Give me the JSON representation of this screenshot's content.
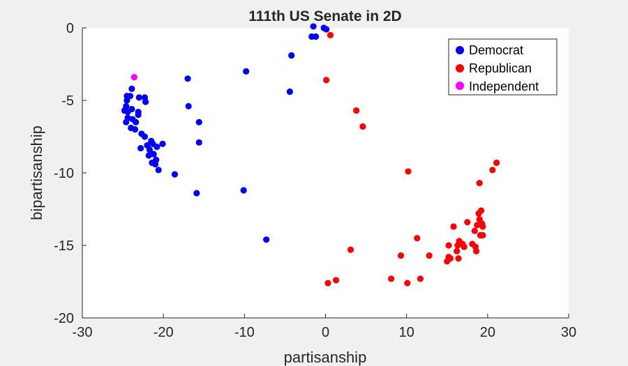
{
  "chart_data": {
    "type": "scatter",
    "title": "111th US Senate in 2D",
    "xlabel": "partisanship",
    "ylabel": "bipartisanship",
    "xlim": [
      -30,
      30
    ],
    "ylim": [
      -20,
      0
    ],
    "xticks": [
      -30,
      -20,
      -10,
      0,
      10,
      20,
      30
    ],
    "yticks": [
      0,
      -5,
      -10,
      -15,
      -20
    ],
    "grid": false,
    "legend_position": "top-right",
    "series": [
      {
        "name": "Democrat",
        "color": "#0000ff",
        "points": [
          [
            -1.5,
            0.1
          ],
          [
            -0.2,
            0.0
          ],
          [
            0.1,
            -0.1
          ],
          [
            -1.2,
            -0.6
          ],
          [
            -1.7,
            -0.6
          ],
          [
            -4.2,
            -1.9
          ],
          [
            -9.8,
            -3.0
          ],
          [
            -4.4,
            -4.4
          ],
          [
            -17.0,
            -3.5
          ],
          [
            -16.9,
            -5.4
          ],
          [
            -15.6,
            -6.5
          ],
          [
            -15.6,
            -7.9
          ],
          [
            -18.6,
            -10.1
          ],
          [
            -15.9,
            -11.4
          ],
          [
            -10.1,
            -11.2
          ],
          [
            -7.3,
            -14.6
          ],
          [
            -23.9,
            -4.2
          ],
          [
            -24.1,
            -4.7
          ],
          [
            -24.5,
            -4.7
          ],
          [
            -24.5,
            -5.0
          ],
          [
            -24.6,
            -5.4
          ],
          [
            -24.8,
            -5.7
          ],
          [
            -24.4,
            -5.8
          ],
          [
            -23.9,
            -5.6
          ],
          [
            -24.4,
            -6.2
          ],
          [
            -23.8,
            -6.3
          ],
          [
            -24.6,
            -6.5
          ],
          [
            -24.0,
            -6.9
          ],
          [
            -23.5,
            -7.0
          ],
          [
            -23.4,
            -6.5
          ],
          [
            -23.1,
            -6.0
          ],
          [
            -23.1,
            -5.8
          ],
          [
            -22.7,
            -7.3
          ],
          [
            -23.0,
            -4.8
          ],
          [
            -22.3,
            -4.8
          ],
          [
            -22.2,
            -5.1
          ],
          [
            -22.3,
            -7.5
          ],
          [
            -21.5,
            -7.8
          ],
          [
            -21.3,
            -8.0
          ],
          [
            -20.8,
            -8.2
          ],
          [
            -20.1,
            -8.0
          ],
          [
            -22.8,
            -8.3
          ],
          [
            -22.0,
            -8.1
          ],
          [
            -21.7,
            -8.4
          ],
          [
            -21.2,
            -8.7
          ],
          [
            -21.8,
            -8.8
          ],
          [
            -20.9,
            -9.1
          ],
          [
            -21.0,
            -9.4
          ],
          [
            -21.4,
            -9.3
          ],
          [
            -20.6,
            -9.8
          ]
        ]
      },
      {
        "name": "Republican",
        "color": "#ff0000",
        "points": [
          [
            0.6,
            -0.5
          ],
          [
            0.1,
            -3.6
          ],
          [
            3.8,
            -5.7
          ],
          [
            4.6,
            -6.8
          ],
          [
            10.2,
            -9.9
          ],
          [
            21.1,
            -9.3
          ],
          [
            20.6,
            -9.8
          ],
          [
            19.0,
            -10.7
          ],
          [
            18.9,
            -12.8
          ],
          [
            19.2,
            -12.6
          ],
          [
            19.0,
            -13.2
          ],
          [
            19.3,
            -13.5
          ],
          [
            18.7,
            -13.6
          ],
          [
            19.4,
            -13.7
          ],
          [
            18.4,
            -14.0
          ],
          [
            19.1,
            -14.3
          ],
          [
            19.4,
            -14.3
          ],
          [
            17.5,
            -13.4
          ],
          [
            15.8,
            -13.7
          ],
          [
            11.3,
            -14.5
          ],
          [
            16.5,
            -14.7
          ],
          [
            16.3,
            -15.0
          ],
          [
            15.2,
            -15.0
          ],
          [
            17.1,
            -15.1
          ],
          [
            16.9,
            -14.9
          ],
          [
            18.1,
            -14.9
          ],
          [
            18.5,
            -15.1
          ],
          [
            18.6,
            -15.4
          ],
          [
            16.2,
            -15.4
          ],
          [
            15.4,
            -15.9
          ],
          [
            15.0,
            -16.1
          ],
          [
            16.4,
            -15.9
          ],
          [
            15.2,
            -15.8
          ],
          [
            12.8,
            -15.7
          ],
          [
            9.3,
            -15.7
          ],
          [
            3.1,
            -15.3
          ],
          [
            8.1,
            -17.3
          ],
          [
            11.7,
            -17.3
          ],
          [
            10.1,
            -17.6
          ],
          [
            1.3,
            -17.4
          ],
          [
            0.3,
            -17.6
          ]
        ]
      },
      {
        "name": "Independent",
        "color": "#ff00ff",
        "points": [
          [
            -23.6,
            -3.4
          ]
        ]
      }
    ]
  }
}
